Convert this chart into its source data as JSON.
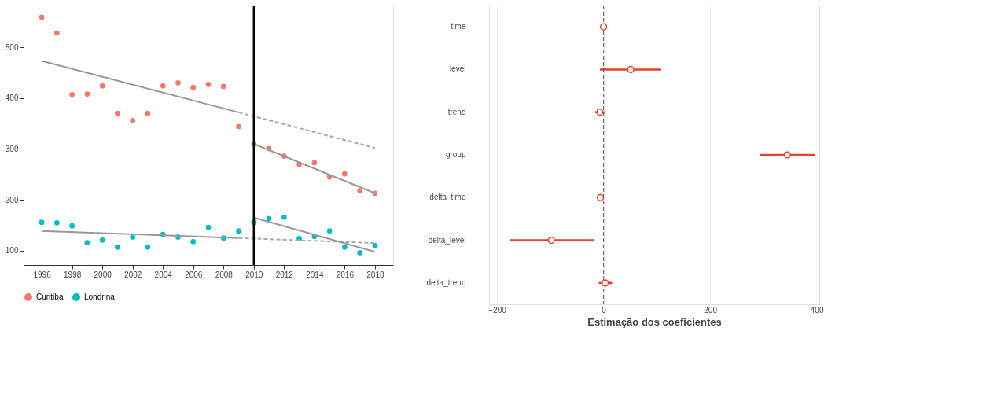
{
  "chart_data": [
    {
      "type": "scatter",
      "x": [
        1996,
        1997,
        1998,
        1999,
        2000,
        2001,
        2002,
        2003,
        2004,
        2005,
        2006,
        2007,
        2008,
        2009,
        2010,
        2011,
        2012,
        2013,
        2014,
        2015,
        2016,
        2017,
        2018
      ],
      "series": [
        {
          "name": "Curitiba",
          "color": "#f8766d",
          "values": [
            559,
            528,
            407,
            408,
            424,
            370,
            356,
            370,
            424,
            430,
            421,
            427,
            423,
            344,
            310,
            301,
            286,
            270,
            273,
            245,
            251,
            218,
            213
          ]
        },
        {
          "name": "Londrina",
          "color": "#00bfc4",
          "values": [
            156,
            155,
            149,
            116,
            121,
            107,
            127,
            107,
            132,
            127,
            118,
            146,
            125,
            139,
            156,
            163,
            166,
            124,
            128,
            139,
            107,
            96,
            110
          ]
        },
        {
          "type": "line",
          "color": "#999999",
          "line_style": "solid",
          "marker": "none",
          "x": [
            1996,
            2009
          ],
          "values": [
            473,
            372
          ]
        },
        {
          "type": "line",
          "color": "#aaaaaa",
          "line_style": "dashed",
          "marker": "none",
          "x": [
            2009,
            2018
          ],
          "values": [
            372,
            302
          ]
        },
        {
          "type": "line",
          "color": "#999999",
          "line_style": "solid",
          "marker": "none",
          "x": [
            2010,
            2018
          ],
          "values": [
            310,
            213
          ]
        },
        {
          "type": "line",
          "color": "#999999",
          "line_style": "solid",
          "marker": "none",
          "x": [
            1996,
            2009
          ],
          "values": [
            139,
            125
          ]
        },
        {
          "type": "line",
          "color": "#aaaaaa",
          "line_style": "dashed",
          "marker": "none",
          "x": [
            2009,
            2018
          ],
          "values": [
            125,
            115
          ]
        },
        {
          "type": "line",
          "color": "#999999",
          "line_style": "solid",
          "marker": "none",
          "x": [
            2010,
            2018
          ],
          "values": [
            165,
            98
          ]
        }
      ],
      "ref_lines": [
        {
          "axis": "x",
          "value": 2010,
          "color": "#000000",
          "line_style": "solid"
        }
      ],
      "xlim": [
        1994.8,
        2019.2
      ],
      "xticks": [
        1996,
        1998,
        2000,
        2002,
        2004,
        2006,
        2008,
        2010,
        2012,
        2014,
        2016,
        2018
      ],
      "ylim": [
        72,
        582
      ],
      "yticks": [
        100,
        200,
        300,
        400,
        500
      ],
      "grid": false,
      "legend": "bottom",
      "marker": "circle"
    },
    {
      "type": "scatter",
      "orientation": "horizontal",
      "categories": [
        "time",
        "level",
        "trend",
        "group",
        "delta_time",
        "delta_level",
        "delta_trend"
      ],
      "values": [
        0,
        51,
        -7,
        345,
        -6,
        -98,
        3
      ],
      "errors": [
        [
          -2,
          2
        ],
        [
          -7,
          108
        ],
        [
          -16,
          2
        ],
        [
          293,
          397
        ],
        [
          -11,
          -1
        ],
        [
          -176,
          -17
        ],
        [
          -9,
          16
        ]
      ],
      "color": "#e8402a",
      "marker": "circle",
      "xlim": [
        -215,
        405
      ],
      "xticks": [
        -200,
        0,
        200,
        400
      ],
      "xlabel": "Estimação dos coeficientes",
      "ref_lines": [
        {
          "axis": "x",
          "value": 0,
          "color": "#555555",
          "line_style": "dashed"
        }
      ],
      "grid": "x"
    }
  ]
}
